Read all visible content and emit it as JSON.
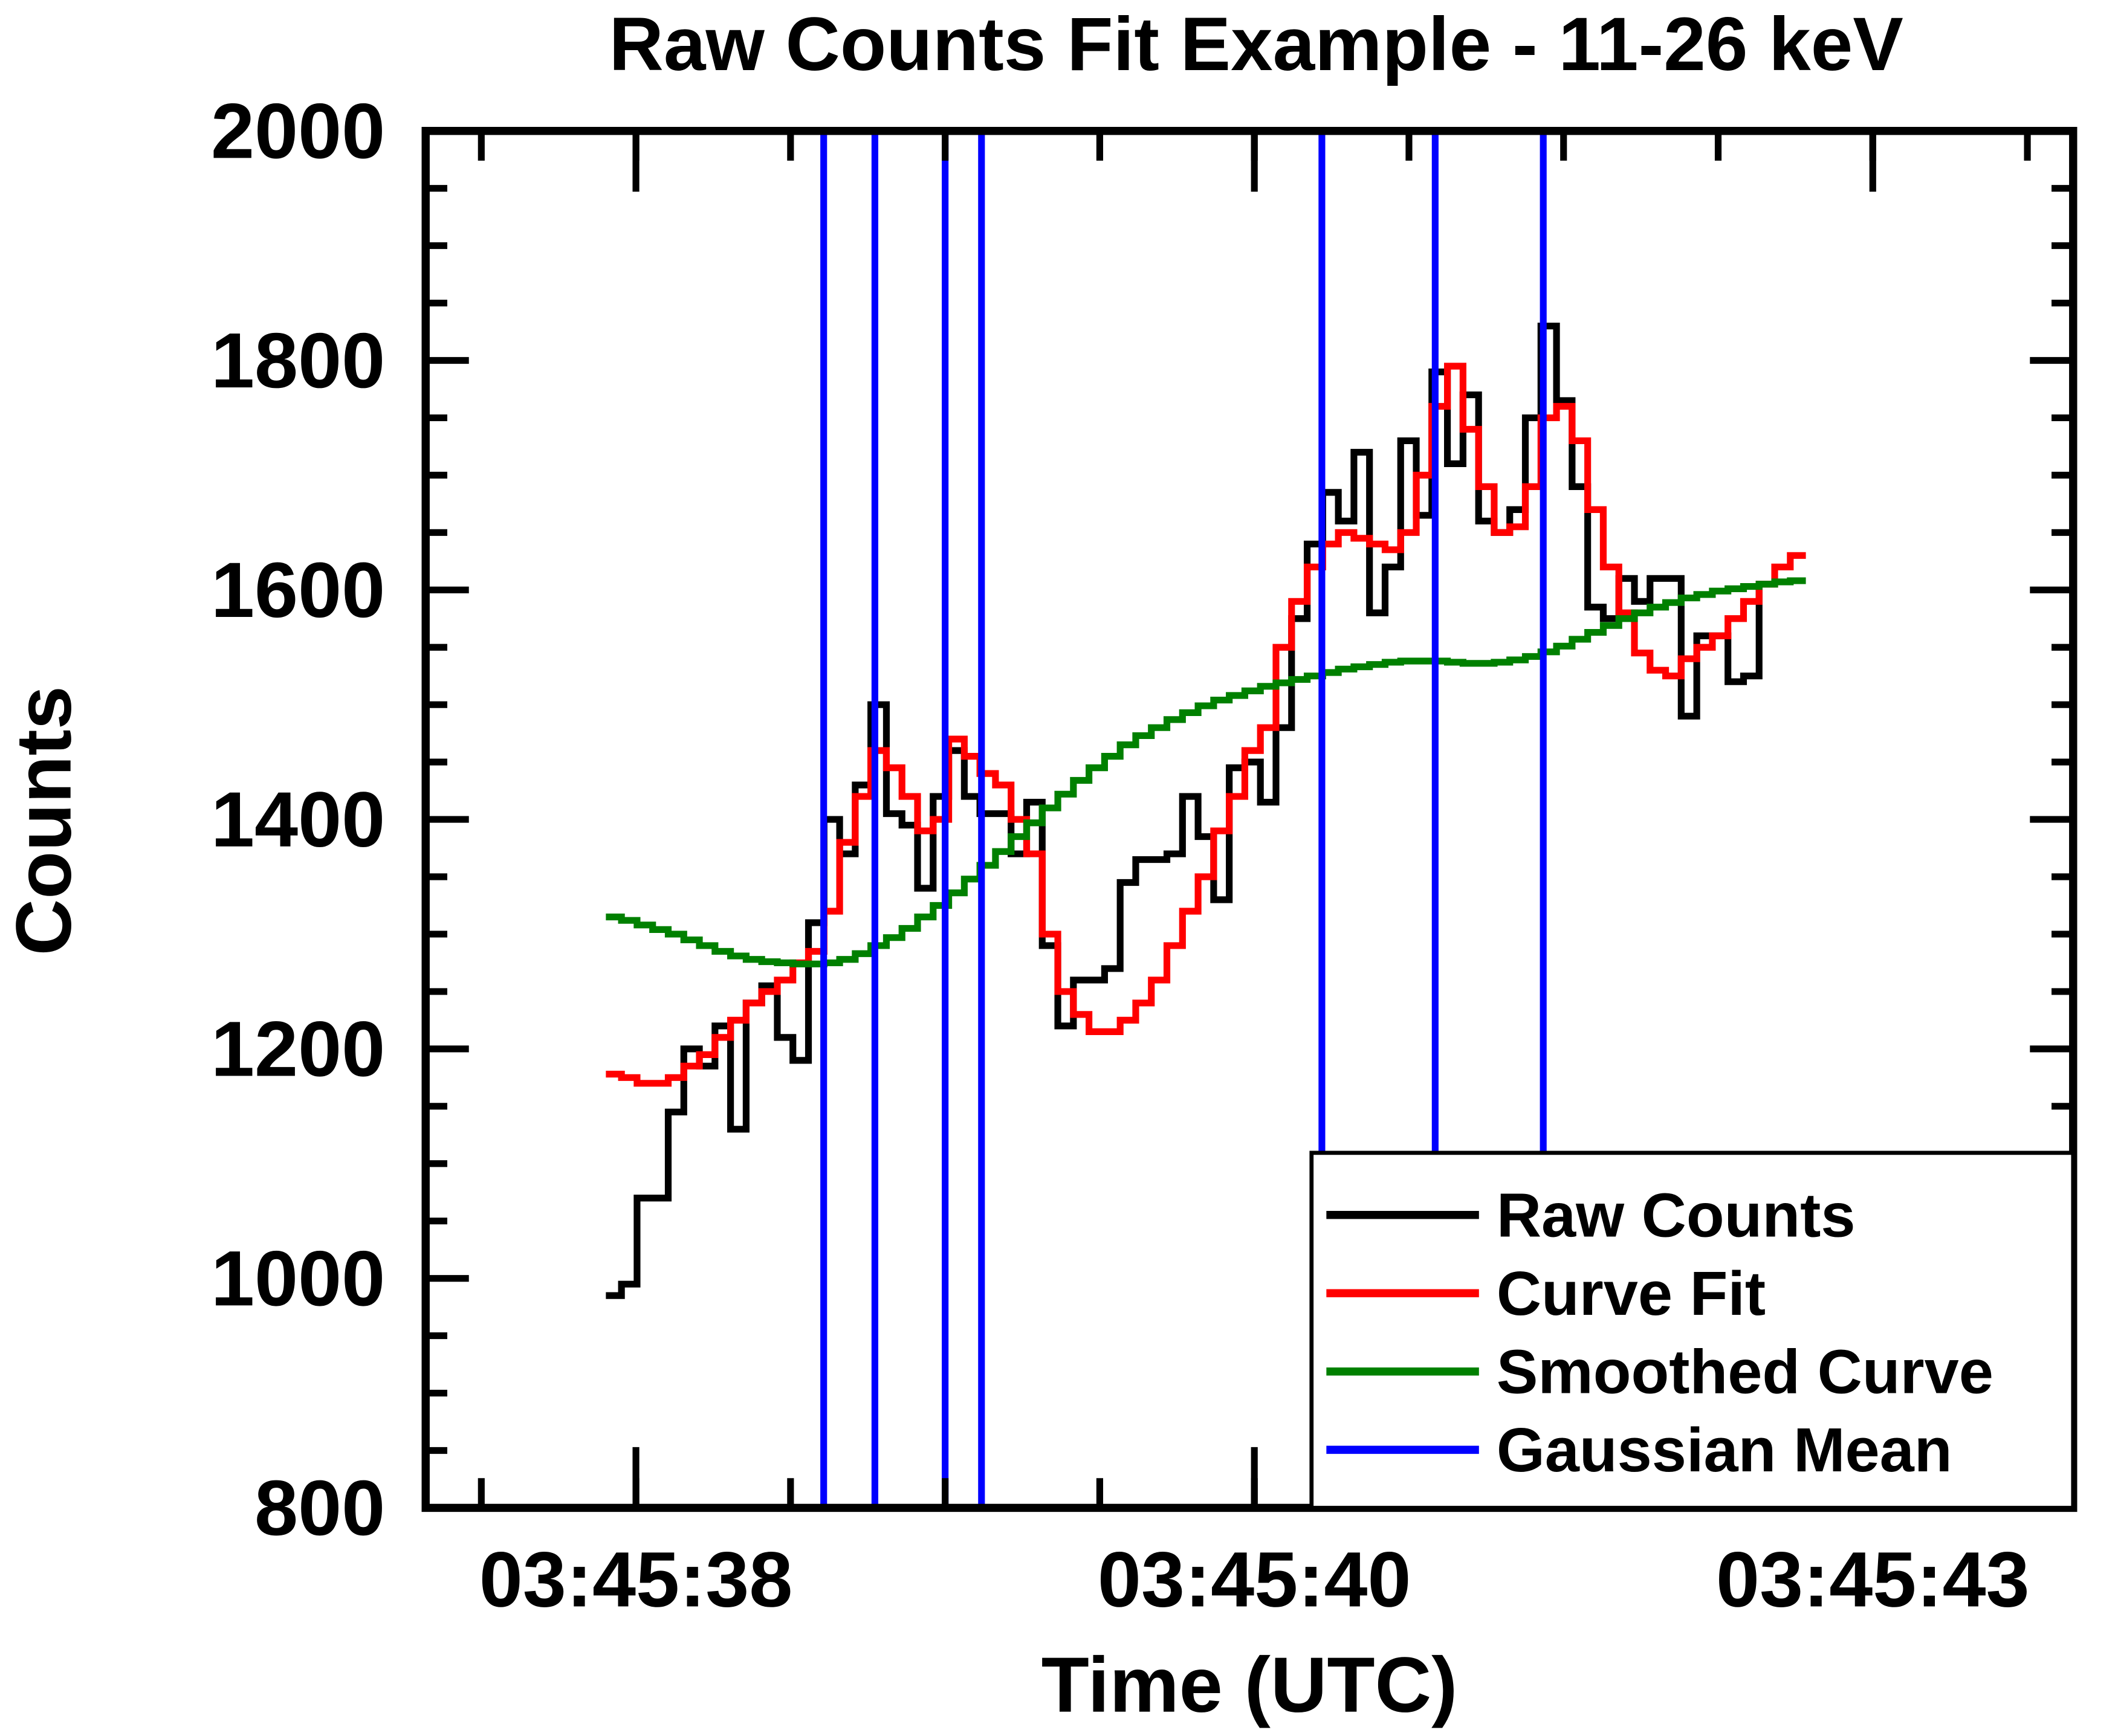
{
  "chart_data": {
    "type": "line",
    "drawstyle": "steps-mid",
    "title": "Raw Counts Fit Example - 11-26 keV",
    "xlabel": "Time (UTC)",
    "ylabel": "Counts",
    "x": [
      37.91,
      37.973,
      38.036,
      38.099,
      38.162,
      38.225,
      38.288,
      38.351,
      38.414,
      38.477,
      38.54,
      38.603,
      38.666,
      38.729,
      38.792,
      38.855,
      38.918,
      38.981,
      39.044,
      39.107,
      39.17,
      39.233,
      39.296,
      39.359,
      39.422,
      39.485,
      39.548,
      39.611,
      39.674,
      39.737,
      39.8,
      39.863,
      39.926,
      39.989,
      40.052,
      40.115,
      40.178,
      40.241,
      40.304,
      40.367,
      40.43,
      40.493,
      40.556,
      40.619,
      40.682,
      40.745,
      40.808,
      40.871,
      40.934,
      40.997,
      41.06,
      41.123,
      41.186,
      41.249,
      41.312,
      41.375,
      41.438,
      41.501,
      41.564,
      41.627,
      41.69,
      41.753,
      41.816,
      41.879,
      41.942,
      42.005,
      42.068,
      42.131,
      42.194,
      42.257,
      42.32,
      42.383,
      42.446,
      42.509,
      42.572,
      42.635,
      42.698
    ],
    "series": [
      {
        "name": "Raw Counts",
        "color": "#000000",
        "values": [
          985,
          995,
          1070,
          1070,
          1145,
          1200,
          1185,
          1220,
          1130,
          1240,
          1255,
          1210,
          1190,
          1310,
          1400,
          1370,
          1430,
          1500,
          1405,
          1395,
          1340,
          1420,
          1460,
          1420,
          1405,
          1405,
          1370,
          1415,
          1290,
          1220,
          1260,
          1260,
          1270,
          1345,
          1365,
          1365,
          1370,
          1420,
          1385,
          1330,
          1445,
          1450,
          1415,
          1480,
          1575,
          1640,
          1685,
          1660,
          1720,
          1580,
          1620,
          1730,
          1665,
          1790,
          1710,
          1770,
          1660,
          1650,
          1670,
          1750,
          1830,
          1765,
          1690,
          1585,
          1575,
          1610,
          1590,
          1610,
          1610,
          1490,
          1560,
          1560,
          1520,
          1525,
          1605,
          null,
          null
        ]
      },
      {
        "name": "Curve Fit",
        "color": "#ff0000",
        "values": [
          1178,
          1175,
          1170,
          1170,
          1175,
          1185,
          1195,
          1210,
          1225,
          1240,
          1250,
          1260,
          1275,
          1285,
          1320,
          1380,
          1420,
          1460,
          1445,
          1420,
          1390,
          1400,
          1470,
          1455,
          1440,
          1430,
          1400,
          1370,
          1300,
          1250,
          1230,
          1215,
          1215,
          1225,
          1240,
          1260,
          1290,
          1320,
          1350,
          1390,
          1420,
          1460,
          1480,
          1550,
          1590,
          1620,
          1640,
          1650,
          1645,
          1640,
          1635,
          1650,
          1700,
          1760,
          1795,
          1740,
          1690,
          1650,
          1655,
          1690,
          1750,
          1760,
          1730,
          1670,
          1620,
          1580,
          1545,
          1530,
          1525,
          1540,
          1550,
          1560,
          1575,
          1590,
          1605,
          1620,
          1630
        ]
      },
      {
        "name": "Smoothed Curve",
        "color": "#008000",
        "values": [
          1315,
          1312,
          1308,
          1304,
          1300,
          1295,
          1290,
          1285,
          1281,
          1278,
          1276,
          1275,
          1274,
          1274,
          1275,
          1278,
          1283,
          1290,
          1297,
          1305,
          1315,
          1325,
          1336,
          1348,
          1360,
          1372,
          1385,
          1397,
          1410,
          1422,
          1434,
          1445,
          1455,
          1465,
          1473,
          1480,
          1487,
          1493,
          1499,
          1504,
          1508,
          1512,
          1516,
          1519,
          1522,
          1525,
          1528,
          1531,
          1533,
          1535,
          1537,
          1538,
          1538,
          1538,
          1537,
          1536,
          1536,
          1537,
          1539,
          1542,
          1546,
          1551,
          1557,
          1563,
          1569,
          1575,
          1580,
          1585,
          1589,
          1593,
          1596,
          1599,
          1601,
          1603,
          1605,
          1607,
          1608
        ]
      }
    ],
    "vlines": {
      "name": "Gaussian Mean",
      "color": "#0000ff",
      "x": [
        38.759,
        38.966,
        39.25,
        39.397,
        40.773,
        41.231,
        41.668
      ]
    },
    "xlim": [
      37.15,
      43.81
    ],
    "xticks": [
      {
        "value": 38,
        "label": "03:45:38"
      },
      {
        "value": 40.5,
        "label": "03:45:40"
      },
      {
        "value": 43,
        "label": "03:45:43"
      }
    ],
    "ylim": [
      800,
      2000
    ],
    "yticks": [
      800,
      1000,
      1200,
      1400,
      1600,
      1800,
      2000
    ],
    "grid": false,
    "legend": "lower right"
  }
}
